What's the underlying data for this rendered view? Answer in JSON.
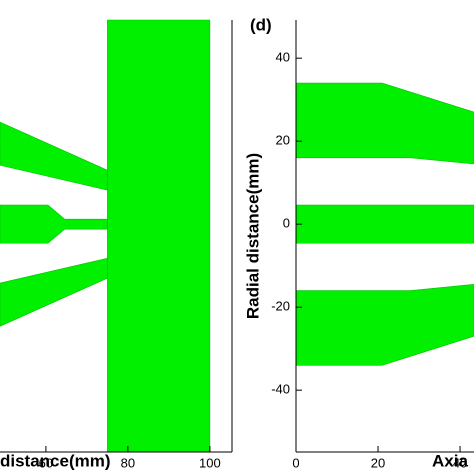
{
  "chart_data": [
    {
      "type": "geometry",
      "x_label": "distance(mm)",
      "color": "#00f000",
      "xlim": [
        48.8,
        105.4
      ],
      "ylim": [
        -54.9,
        49.2
      ],
      "xticks": [
        60,
        80,
        100
      ],
      "polygons": [
        {
          "x": [
            48.8,
            75,
            75,
            48.8
          ],
          "y": [
            24.6,
            13,
            8.2,
            14.2
          ]
        },
        {
          "x": [
            48.8,
            60.5,
            64.6,
            75,
            75,
            64.6,
            60.5,
            48.8
          ],
          "y": [
            4.6,
            4.6,
            1.2,
            1.2,
            -1.2,
            -1.2,
            -4.6,
            -4.6
          ]
        },
        {
          "x": [
            48.8,
            75,
            75,
            48.8
          ],
          "y": [
            -14.2,
            -8.2,
            -13,
            -24.6
          ]
        },
        {
          "x": [
            75,
            100,
            100,
            75
          ],
          "y": [
            49.2,
            49.2,
            -54.9,
            -54.9
          ]
        }
      ]
    },
    {
      "type": "geometry",
      "panel_label": "(d)",
      "x_label": "Axia",
      "y_label": "Radial distance(mm)",
      "color": "#00f000",
      "xlim": [
        0,
        43.4
      ],
      "ylim": [
        -54.9,
        49.2
      ],
      "xticks": [
        0,
        20,
        40
      ],
      "yticks": [
        -40,
        -20,
        0,
        20,
        40
      ],
      "polygons": [
        {
          "x": [
            0,
            21,
            43.4,
            43.4,
            28,
            0
          ],
          "y": [
            34,
            34,
            27,
            14.5,
            16,
            16
          ]
        },
        {
          "x": [
            0,
            43.4,
            43.4,
            0
          ],
          "y": [
            4.6,
            4.6,
            -4.6,
            -4.6
          ]
        },
        {
          "x": [
            0,
            28,
            43.4,
            43.4,
            21,
            0
          ],
          "y": [
            -16,
            -16,
            -14.5,
            -27,
            -34,
            -34
          ]
        }
      ]
    }
  ]
}
